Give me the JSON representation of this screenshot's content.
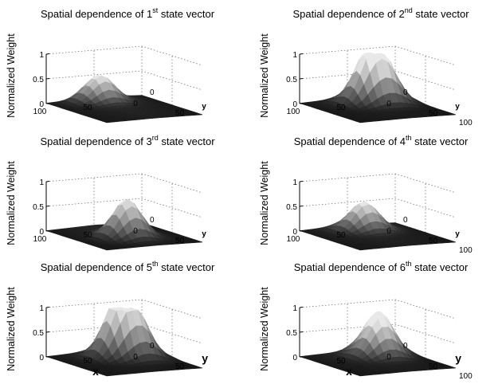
{
  "chart_data": [
    {
      "type": "surface",
      "title_prefix": "Spatial dependence of ",
      "ordinal": "1",
      "ordinal_suffix": "st",
      "title_suffix": " state vector",
      "zlabel": "Normalized Weight",
      "xlabel": "",
      "ylabel": "y",
      "xlim": [
        0,
        100
      ],
      "ylim": [
        0,
        100
      ],
      "zlim": [
        0,
        1
      ],
      "x_ticks": [
        "100",
        "50",
        "0"
      ],
      "y_ticks": [
        "50",
        "0"
      ],
      "z_ticks": [
        "0",
        "0.5",
        "1"
      ],
      "grid": true,
      "peaks": [
        {
          "x": 50,
          "y": 10,
          "height": 0.5
        }
      ]
    },
    {
      "type": "surface",
      "title_prefix": "Spatial dependence of ",
      "ordinal": "2",
      "ordinal_suffix": "nd",
      "title_suffix": " state vector",
      "zlabel": "Normalized Weight",
      "xlabel": "",
      "ylabel": "y",
      "xlim": [
        0,
        100
      ],
      "ylim": [
        0,
        100
      ],
      "zlim": [
        0,
        1
      ],
      "x_ticks": [
        "100",
        "50",
        "0"
      ],
      "y_ticks": [
        "100",
        "50",
        "0"
      ],
      "z_ticks": [
        "0",
        "0.5",
        "1"
      ],
      "grid": true,
      "peaks": [
        {
          "x": 45,
          "y": 25,
          "height": 0.85
        },
        {
          "x": 30,
          "y": 30,
          "height": 0.65
        }
      ]
    },
    {
      "type": "surface",
      "title_prefix": "Spatial dependence of ",
      "ordinal": "3",
      "ordinal_suffix": "rd",
      "title_suffix": " state vector",
      "zlabel": "Normalized Weight",
      "xlabel": "",
      "ylabel": "y",
      "xlim": [
        0,
        100
      ],
      "ylim": [
        0,
        100
      ],
      "zlim": [
        0,
        1
      ],
      "x_ticks": [
        "100",
        "50",
        "0"
      ],
      "y_ticks": [
        "50",
        "0"
      ],
      "z_ticks": [
        "0",
        "0.5",
        "1"
      ],
      "grid": true,
      "peaks": [
        {
          "x": 50,
          "y": 55,
          "height": 0.75
        }
      ]
    },
    {
      "type": "surface",
      "title_prefix": "Spatial dependence of ",
      "ordinal": "4",
      "ordinal_suffix": "th",
      "title_suffix": " state vector",
      "zlabel": "Normalized Weight",
      "xlabel": "",
      "ylabel": "y",
      "xlim": [
        0,
        100
      ],
      "ylim": [
        0,
        100
      ],
      "zlim": [
        0,
        1
      ],
      "x_ticks": [
        "100",
        "50",
        "0"
      ],
      "y_ticks": [
        "100",
        "50",
        "0"
      ],
      "z_ticks": [
        "0",
        "0.5",
        "1"
      ],
      "grid": true,
      "peaks": [
        {
          "x": 45,
          "y": 20,
          "height": 0.55
        }
      ]
    },
    {
      "type": "surface",
      "title_prefix": "Spatial dependence of ",
      "ordinal": "5",
      "ordinal_suffix": "th",
      "title_suffix": " state vector",
      "zlabel": "Normalized Weight",
      "xlabel": "x",
      "ylabel": "y",
      "xlim": [
        0,
        100
      ],
      "ylim": [
        0,
        100
      ],
      "zlim": [
        0,
        1
      ],
      "x_ticks": [
        "50",
        "0"
      ],
      "y_ticks": [
        "50",
        "0"
      ],
      "z_ticks": [
        "0",
        "0.5",
        "1"
      ],
      "grid": true,
      "peaks": [
        {
          "x": 45,
          "y": 30,
          "height": 1.0
        },
        {
          "x": 30,
          "y": 40,
          "height": 0.7
        }
      ]
    },
    {
      "type": "surface",
      "title_prefix": "Spatial dependence of ",
      "ordinal": "6",
      "ordinal_suffix": "th",
      "title_suffix": " state vector",
      "zlabel": "Normalized Weight",
      "xlabel": "x",
      "ylabel": "y",
      "xlim": [
        0,
        100
      ],
      "ylim": [
        0,
        100
      ],
      "zlim": [
        0,
        1
      ],
      "x_ticks": [
        "50",
        "0"
      ],
      "y_ticks": [
        "100",
        "50",
        "0"
      ],
      "z_ticks": [
        "0",
        "0.5",
        "1"
      ],
      "grid": true,
      "peaks": [
        {
          "x": 35,
          "y": 30,
          "height": 0.7
        },
        {
          "x": 25,
          "y": 10,
          "height": 0.55
        }
      ]
    }
  ]
}
